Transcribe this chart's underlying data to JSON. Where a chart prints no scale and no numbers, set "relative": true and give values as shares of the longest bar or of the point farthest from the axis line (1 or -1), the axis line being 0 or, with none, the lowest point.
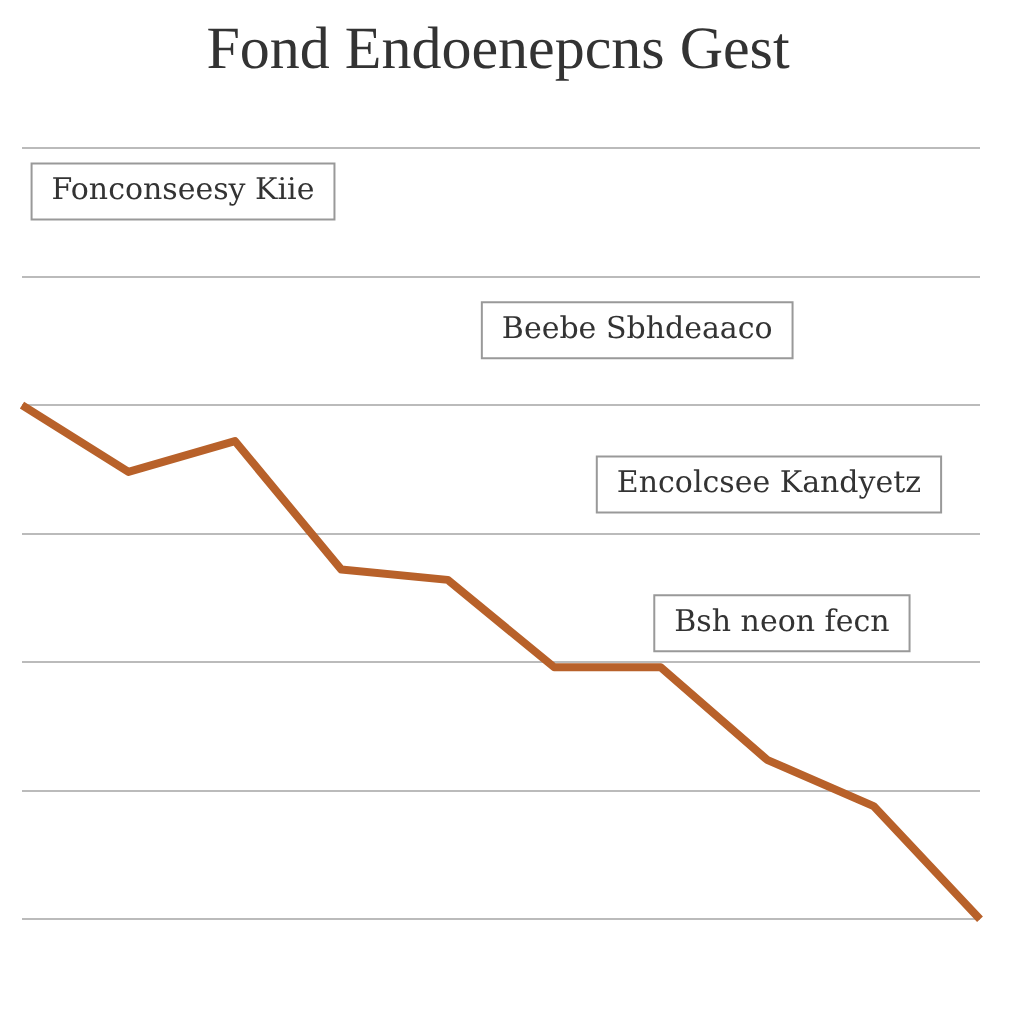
{
  "chart_data": {
    "type": "line",
    "title": "Fond Endoenepcns Gest",
    "relative": true,
    "grid": "y",
    "legend": false,
    "marker": "none",
    "line_style": "solid",
    "categories": [
      null,
      null,
      null,
      null,
      null,
      null,
      null,
      null,
      null,
      null
    ],
    "series": [
      {
        "color": "#b8612a",
        "values": [
          1,
          0.87,
          0.93,
          0.68,
          0.66,
          0.49,
          0.49,
          0.31,
          0.22,
          0
        ]
      }
    ],
    "annotations": [
      "Fonconseesy Kiie",
      "Beebe Sbhdeaaco",
      "Encolcsee Kandyetz",
      "Bsh neon fecn"
    ]
  }
}
